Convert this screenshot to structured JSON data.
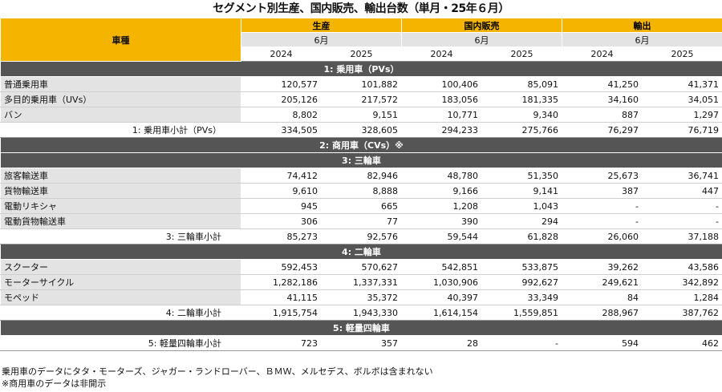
{
  "title": "セグメント別生産、国内販売、輸出台数（単月・25年６月）",
  "header": {
    "col0": "車種",
    "groups": [
      "生産",
      "国内販売",
      "輸出"
    ],
    "month": "6月",
    "years": [
      "2024",
      "2025"
    ]
  },
  "sections": [
    {
      "type": "section",
      "label": "1: 乗用車（PVs）",
      "rows": [
        {
          "label": "普通乗用車",
          "values": [
            "120,577",
            "101,882",
            "100,406",
            "85,091",
            "41,250",
            "41,371"
          ]
        },
        {
          "label": "多目的乗用車（UVs）",
          "values": [
            "205,126",
            "217,572",
            "183,056",
            "181,335",
            "34,160",
            "34,051"
          ]
        },
        {
          "label": "バン",
          "values": [
            "8,802",
            "9,151",
            "10,771",
            "9,340",
            "887",
            "1,297"
          ]
        }
      ],
      "subtotal": {
        "label": "1: 乗用車小計（PVs）",
        "values": [
          "334,505",
          "328,605",
          "294,233",
          "275,766",
          "76,297",
          "76,719"
        ]
      }
    },
    {
      "type": "section",
      "label": "2: 商用車（CVs）※",
      "rows": [],
      "subtotal": null
    },
    {
      "type": "section",
      "label": "3: 三輪車",
      "rows": [
        {
          "label": "旅客輸送車",
          "values": [
            "74,412",
            "82,946",
            "48,780",
            "51,350",
            "25,673",
            "36,741"
          ]
        },
        {
          "label": "貨物輸送車",
          "values": [
            "9,610",
            "8,888",
            "9,166",
            "9,141",
            "387",
            "447"
          ]
        },
        {
          "label": "電動リキシャ",
          "values": [
            "945",
            "665",
            "1,208",
            "1,043",
            "-",
            "-"
          ]
        },
        {
          "label": "電動貨物輸送車",
          "values": [
            "306",
            "77",
            "390",
            "294",
            "-",
            "-"
          ]
        }
      ],
      "subtotal": {
        "label": "3: 三輪車小計",
        "values": [
          "85,273",
          "92,576",
          "59,544",
          "61,828",
          "26,060",
          "37,188"
        ]
      }
    },
    {
      "type": "section",
      "label": "4: 二輪車",
      "rows": [
        {
          "label": "スクーター",
          "values": [
            "592,453",
            "570,627",
            "542,851",
            "533,875",
            "39,262",
            "43,586"
          ]
        },
        {
          "label": "モーターサイクル",
          "values": [
            "1,282,186",
            "1,337,331",
            "1,030,906",
            "992,627",
            "249,621",
            "342,892"
          ]
        },
        {
          "label": "モペッド",
          "values": [
            "41,115",
            "35,372",
            "40,397",
            "33,349",
            "84",
            "1,284"
          ]
        }
      ],
      "subtotal": {
        "label": "4: 二輪車小計",
        "values": [
          "1,915,754",
          "1,943,330",
          "1,614,154",
          "1,559,851",
          "288,967",
          "387,762"
        ]
      }
    },
    {
      "type": "section",
      "label": "5: 軽量四輪車",
      "rows": [],
      "subtotal": {
        "label": "5: 軽量四輪車小計",
        "values": [
          "723",
          "357",
          "28",
          "-",
          "594",
          "462"
        ]
      }
    }
  ],
  "notes": [
    "乗用車のデータにタタ・モーターズ、ジャガー・ランドローバー、ＢＭＷ、メルセデス、ボルボは含まれない",
    "※商用車のデータは非開示"
  ]
}
